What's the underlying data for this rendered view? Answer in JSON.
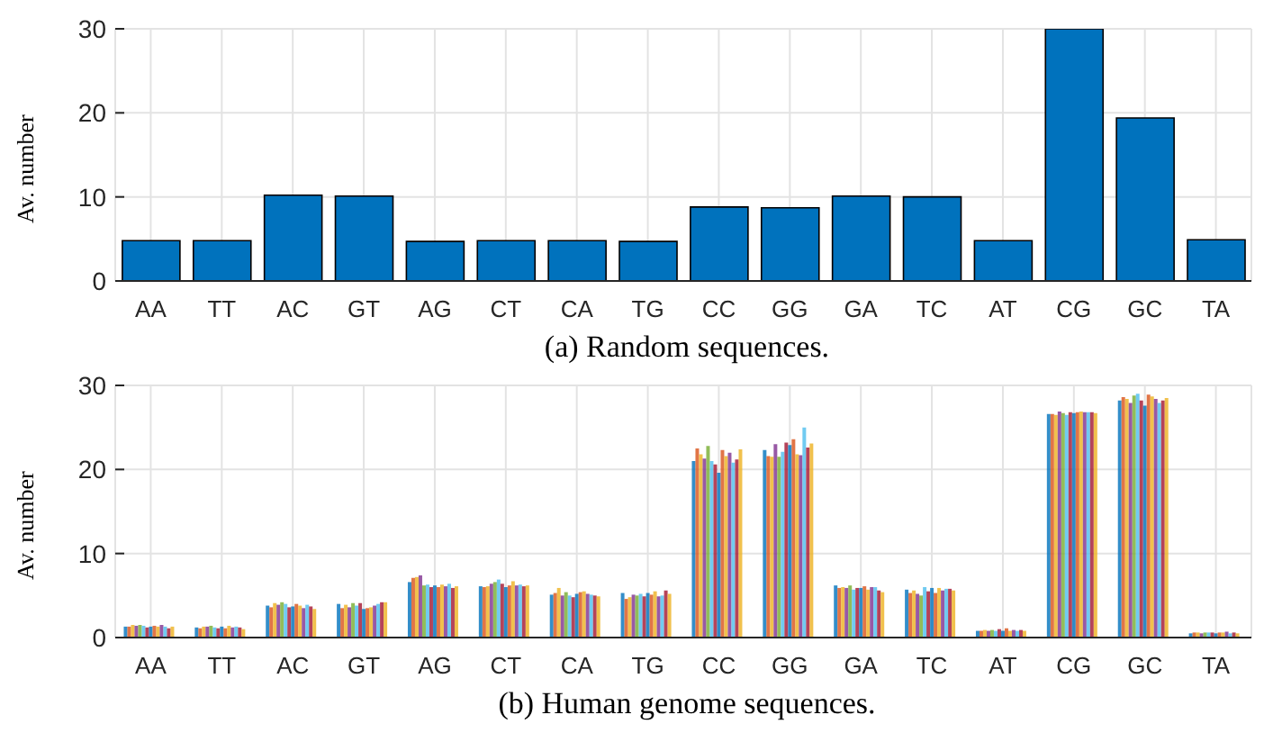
{
  "chart_data": [
    {
      "type": "bar",
      "title": "(a) Random sequences.",
      "ylabel": "Av. number",
      "categories": [
        "AA",
        "TT",
        "AC",
        "GT",
        "AG",
        "CT",
        "CA",
        "TG",
        "CC",
        "GG",
        "GA",
        "TC",
        "AT",
        "CG",
        "GC",
        "TA"
      ],
      "series": [
        {
          "color": "#0072bd",
          "values": [
            4.8,
            4.8,
            10.2,
            10.1,
            4.7,
            4.8,
            4.8,
            4.7,
            8.8,
            8.7,
            10.1,
            10.0,
            4.8,
            30,
            19.4,
            4.9
          ]
        }
      ],
      "ylim": [
        0,
        30
      ],
      "yticks": [
        0,
        10,
        20,
        30
      ],
      "grid": true
    },
    {
      "type": "bar",
      "title": "(b) Human genome sequences.",
      "ylabel": "Av. number",
      "categories": [
        "AA",
        "TT",
        "AC",
        "GT",
        "AG",
        "CT",
        "CA",
        "TG",
        "CC",
        "GG",
        "GA",
        "TC",
        "AT",
        "CG",
        "GC",
        "TA"
      ],
      "series": [
        {
          "color": "#0072bd",
          "values": [
            1.3,
            1.2,
            3.8,
            4.0,
            6.6,
            6.1,
            5.1,
            5.3,
            21.0,
            22.3,
            6.2,
            5.7,
            0.8,
            26.6,
            28.2,
            0.5
          ]
        },
        {
          "color": "#d95319",
          "values": [
            1.3,
            1.1,
            3.6,
            3.5,
            7.1,
            6.0,
            5.3,
            4.6,
            22.5,
            21.6,
            5.9,
            5.3,
            0.8,
            26.6,
            28.6,
            0.6
          ]
        },
        {
          "color": "#edb120",
          "values": [
            1.5,
            1.3,
            4.1,
            3.9,
            7.2,
            6.1,
            5.9,
            4.8,
            21.8,
            21.5,
            6.0,
            5.6,
            0.9,
            26.5,
            28.4,
            0.6
          ]
        },
        {
          "color": "#7e2f8e",
          "values": [
            1.4,
            1.3,
            3.9,
            3.6,
            7.4,
            6.4,
            5.0,
            5.1,
            21.3,
            23.0,
            5.9,
            5.2,
            0.8,
            26.9,
            27.9,
            0.5
          ]
        },
        {
          "color": "#77ac30",
          "values": [
            1.5,
            1.4,
            4.2,
            4.1,
            6.2,
            6.6,
            5.4,
            5.0,
            22.8,
            21.5,
            6.2,
            5.0,
            0.9,
            26.7,
            28.8,
            0.6
          ]
        },
        {
          "color": "#4dbeee",
          "values": [
            1.4,
            1.2,
            4.0,
            3.8,
            6.3,
            6.9,
            5.0,
            5.2,
            21.0,
            22.1,
            5.7,
            6.0,
            0.8,
            26.5,
            29.0,
            0.6
          ]
        },
        {
          "color": "#a2142f",
          "values": [
            1.2,
            1.1,
            3.6,
            4.1,
            6.0,
            6.4,
            4.8,
            4.9,
            20.6,
            23.2,
            5.9,
            5.5,
            1.0,
            26.8,
            28.2,
            0.6
          ]
        },
        {
          "color": "#0072bd",
          "values": [
            1.3,
            1.3,
            3.7,
            3.4,
            6.2,
            6.0,
            5.2,
            5.3,
            19.6,
            22.9,
            5.9,
            5.9,
            0.8,
            26.7,
            27.6,
            0.5
          ]
        },
        {
          "color": "#d95319",
          "values": [
            1.4,
            1.1,
            4.0,
            3.5,
            6.0,
            6.2,
            5.4,
            5.1,
            22.3,
            23.6,
            6.1,
            5.3,
            1.1,
            26.8,
            28.9,
            0.6
          ]
        },
        {
          "color": "#edb120",
          "values": [
            1.3,
            1.4,
            3.8,
            3.6,
            6.3,
            6.7,
            5.5,
            5.5,
            21.6,
            21.8,
            5.7,
            5.9,
            0.8,
            26.9,
            28.7,
            0.6
          ]
        },
        {
          "color": "#7e2f8e",
          "values": [
            1.5,
            1.2,
            3.5,
            3.8,
            6.1,
            6.2,
            5.2,
            4.9,
            22.0,
            21.7,
            6.0,
            5.6,
            0.9,
            26.8,
            28.4,
            0.7
          ]
        },
        {
          "color": "#4dbeee",
          "values": [
            1.3,
            1.3,
            3.9,
            4.0,
            6.4,
            6.3,
            5.1,
            5.0,
            20.8,
            25.0,
            6.0,
            5.8,
            0.8,
            26.8,
            27.9,
            0.5
          ]
        },
        {
          "color": "#a2142f",
          "values": [
            1.1,
            1.2,
            3.7,
            4.2,
            5.9,
            6.1,
            5.0,
            5.6,
            21.2,
            22.6,
            5.6,
            5.8,
            0.9,
            26.8,
            28.2,
            0.6
          ]
        },
        {
          "color": "#edb120",
          "values": [
            1.3,
            1.0,
            3.4,
            4.2,
            6.1,
            6.2,
            4.9,
            5.2,
            22.4,
            23.1,
            5.4,
            5.6,
            0.8,
            26.7,
            28.5,
            0.5
          ]
        }
      ],
      "ylim": [
        0,
        30
      ],
      "yticks": [
        0,
        10,
        20,
        30
      ],
      "grid": true
    }
  ]
}
